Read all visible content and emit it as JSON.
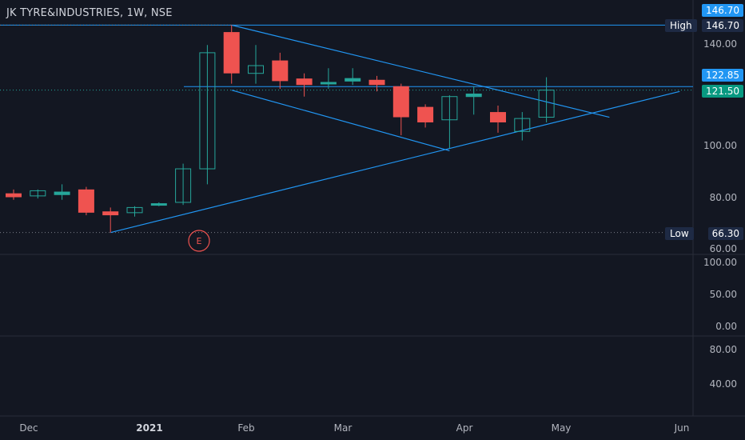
{
  "title": "JK TYRE&INDUSTRIES, 1W, NSE",
  "colors": {
    "background": "#131722",
    "up": "#26a69a",
    "down": "#ef5350",
    "trendline": "#2196f3",
    "grid": "#2a2e39",
    "label_blue": "#2196f3",
    "label_teal": "#089981",
    "tag_bg": "#1e2a44"
  },
  "price_labels": [
    "140.00",
    "100.00",
    "80.00",
    "60.00"
  ],
  "panel2_labels": [
    "100.00",
    "50.00",
    "0.00"
  ],
  "panel3_labels": [
    "80.00",
    "40.00"
  ],
  "x_labels": [
    "Dec",
    "2021",
    "Feb",
    "Mar",
    "Apr",
    "May",
    "Jun"
  ],
  "badges": {
    "high_value": "146.70",
    "high_line_value": "146.70",
    "upper_line_value": "122.85",
    "last_price": "121.50",
    "low_value": "66.30"
  },
  "tags": {
    "high": "High",
    "low": "Low"
  },
  "event_marker": "E",
  "chart_data": {
    "type": "candlestick",
    "title": "JK TYRE&INDUSTRIES, 1W, NSE",
    "candles": [
      {
        "o": 81.5,
        "h": 83.0,
        "l": 79.0,
        "c": 80.0
      },
      {
        "o": 80.5,
        "h": 83.0,
        "l": 79.5,
        "c": 82.5
      },
      {
        "o": 81.0,
        "h": 85.0,
        "l": 79.0,
        "c": 82.0
      },
      {
        "o": 83.0,
        "h": 84.0,
        "l": 73.0,
        "c": 74.0
      },
      {
        "o": 74.5,
        "h": 76.0,
        "l": 66.3,
        "c": 73.0
      },
      {
        "o": 74.0,
        "h": 76.5,
        "l": 72.5,
        "c": 76.0
      },
      {
        "o": 77.0,
        "h": 78.0,
        "l": 76.5,
        "c": 77.5
      },
      {
        "o": 78.0,
        "h": 93.0,
        "l": 77.0,
        "c": 91.0
      },
      {
        "o": 91.0,
        "h": 139.0,
        "l": 85.0,
        "c": 136.0
      },
      {
        "o": 144.0,
        "h": 146.7,
        "l": 124.0,
        "c": 128.0
      },
      {
        "o": 128.0,
        "h": 139.0,
        "l": 124.0,
        "c": 131.0
      },
      {
        "o": 133.0,
        "h": 136.0,
        "l": 122.0,
        "c": 125.0
      },
      {
        "o": 126.0,
        "h": 128.0,
        "l": 119.0,
        "c": 123.5
      },
      {
        "o": 124.0,
        "h": 130.0,
        "l": 122.0,
        "c": 124.5
      },
      {
        "o": 125.0,
        "h": 130.0,
        "l": 123.5,
        "c": 126.0
      },
      {
        "o": 125.5,
        "h": 127.0,
        "l": 121.0,
        "c": 123.5
      },
      {
        "o": 123.0,
        "h": 124.0,
        "l": 104.0,
        "c": 111.0
      },
      {
        "o": 115.0,
        "h": 116.0,
        "l": 107.0,
        "c": 109.0
      },
      {
        "o": 110.0,
        "h": 119.5,
        "l": 99.0,
        "c": 119.0
      },
      {
        "o": 119.0,
        "h": 123.0,
        "l": 112.0,
        "c": 120.0
      },
      {
        "o": 113.0,
        "h": 115.5,
        "l": 105.0,
        "c": 109.0
      },
      {
        "o": 105.5,
        "h": 113.0,
        "l": 102.0,
        "c": 110.5
      },
      {
        "o": 111.0,
        "h": 126.5,
        "l": 109.0,
        "c": 121.5
      }
    ],
    "trendlines": [
      {
        "p1": {
          "bar": 9,
          "price": 146.7
        },
        "p2": {
          "bar": 24.6,
          "price": 111.0
        }
      },
      {
        "p1": {
          "bar": 9,
          "price": 121.5
        },
        "p2": {
          "bar": 18,
          "price": 98.0
        }
      },
      {
        "p1": {
          "bar": 4,
          "price": 66.3
        },
        "p2": {
          "bar": 27.5,
          "price": 121.0
        }
      }
    ],
    "horizontal_levels": [
      146.7,
      122.85,
      121.5,
      66.3
    ],
    "y_ticks": [
      140,
      100,
      80,
      60
    ],
    "x_ticks": [
      "Dec",
      "2021",
      "Feb",
      "Mar",
      "Apr",
      "May",
      "Jun"
    ],
    "high": 146.7,
    "low": 66.3
  }
}
